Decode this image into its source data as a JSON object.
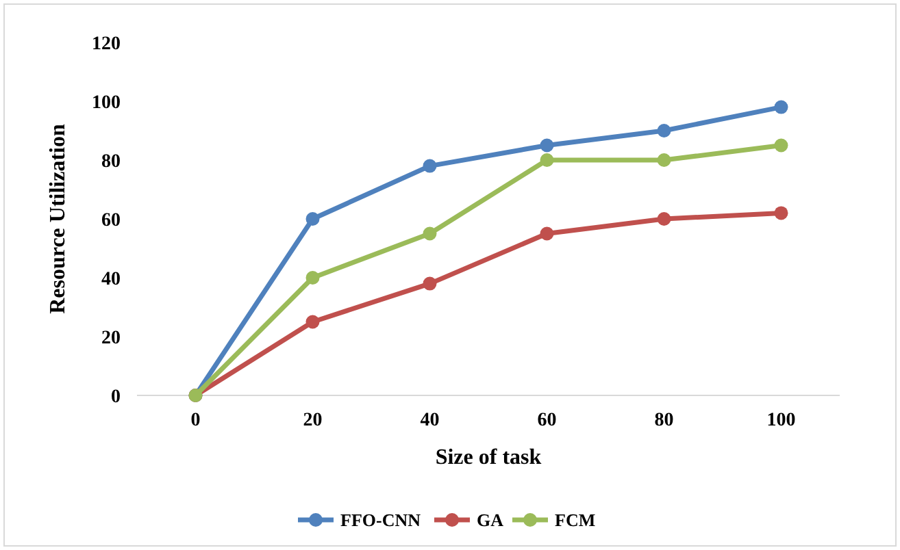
{
  "chart_data": {
    "type": "line",
    "xlabel": "Size of task",
    "ylabel": "Resource Utilization",
    "categories": [
      "0",
      "20",
      "40",
      "60",
      "80",
      "100"
    ],
    "series": [
      {
        "name": "FFO-CNN",
        "color": "#4f81bd",
        "values": [
          0,
          60,
          78,
          85,
          90,
          98
        ]
      },
      {
        "name": "GA",
        "color": "#c0504d",
        "values": [
          0,
          25,
          38,
          55,
          60,
          62
        ]
      },
      {
        "name": "FCM",
        "color": "#9bbb59",
        "values": [
          0,
          40,
          55,
          80,
          80,
          85
        ]
      }
    ],
    "ylim": [
      0,
      120
    ],
    "yticks": [
      0,
      20,
      40,
      60,
      80,
      100,
      120
    ],
    "grid": false,
    "legend": "bottom",
    "marker": "circle",
    "line_style": "solid"
  }
}
